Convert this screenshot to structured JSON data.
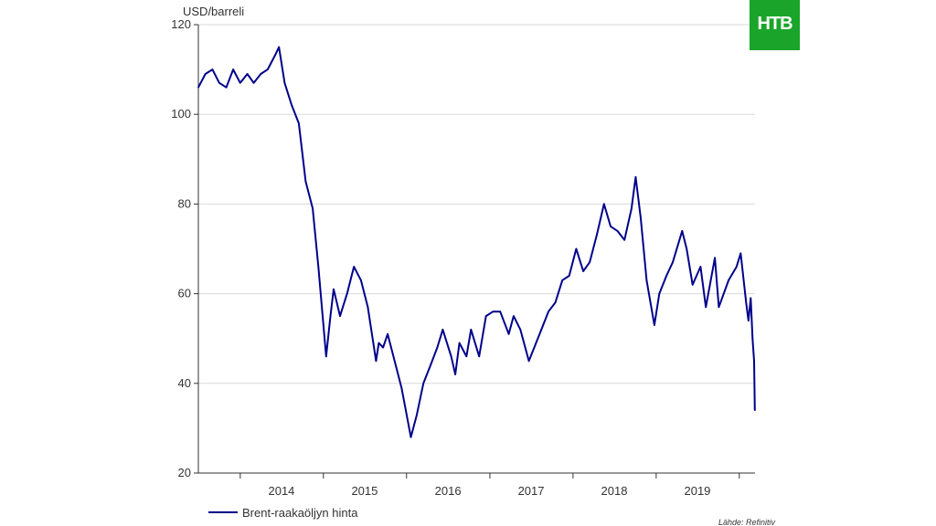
{
  "logo": {
    "text": "НТВ",
    "color": "#1aa52a"
  },
  "source": "Lähde: Refinitiv",
  "chart_data": {
    "type": "line",
    "title": "",
    "ylabel": "USD/barreli",
    "xlabel": "",
    "ylim": [
      20,
      120
    ],
    "xlim": [
      "2013-07-01",
      "2020-03-10"
    ],
    "yticks": [
      20,
      40,
      60,
      80,
      100,
      120
    ],
    "xtick_labels": [
      "2014",
      "2015",
      "2016",
      "2017",
      "2018",
      "2019"
    ],
    "grid": true,
    "legend": "bottom-left",
    "series": [
      {
        "name": "Brent-raakaöljyn hinta",
        "color": "#00008b",
        "points": [
          [
            "2013-07-01",
            106
          ],
          [
            "2013-08-01",
            109
          ],
          [
            "2013-09-01",
            110
          ],
          [
            "2013-10-01",
            107
          ],
          [
            "2013-11-01",
            106
          ],
          [
            "2013-12-01",
            110
          ],
          [
            "2014-01-01",
            107
          ],
          [
            "2014-02-01",
            109
          ],
          [
            "2014-03-01",
            107
          ],
          [
            "2014-04-01",
            109
          ],
          [
            "2014-05-01",
            110
          ],
          [
            "2014-06-01",
            113
          ],
          [
            "2014-06-20",
            115
          ],
          [
            "2014-07-15",
            107
          ],
          [
            "2014-08-15",
            102
          ],
          [
            "2014-09-15",
            98
          ],
          [
            "2014-10-15",
            85
          ],
          [
            "2014-11-15",
            79
          ],
          [
            "2014-12-10",
            66
          ],
          [
            "2015-01-13",
            46
          ],
          [
            "2015-02-01",
            55
          ],
          [
            "2015-02-15",
            61
          ],
          [
            "2015-03-15",
            55
          ],
          [
            "2015-04-15",
            60
          ],
          [
            "2015-05-15",
            66
          ],
          [
            "2015-06-15",
            63
          ],
          [
            "2015-07-15",
            57
          ],
          [
            "2015-08-20",
            45
          ],
          [
            "2015-09-01",
            49
          ],
          [
            "2015-09-20",
            48
          ],
          [
            "2015-10-10",
            51
          ],
          [
            "2015-11-15",
            44
          ],
          [
            "2015-12-10",
            39
          ],
          [
            "2016-01-20",
            28
          ],
          [
            "2016-02-15",
            33
          ],
          [
            "2016-03-15",
            40
          ],
          [
            "2016-04-15",
            44
          ],
          [
            "2016-05-15",
            48
          ],
          [
            "2016-06-08",
            52
          ],
          [
            "2016-07-15",
            46
          ],
          [
            "2016-08-02",
            42
          ],
          [
            "2016-08-20",
            49
          ],
          [
            "2016-09-20",
            46
          ],
          [
            "2016-10-10",
            52
          ],
          [
            "2016-11-15",
            46
          ],
          [
            "2016-12-15",
            55
          ],
          [
            "2017-01-15",
            56
          ],
          [
            "2017-02-15",
            56
          ],
          [
            "2017-03-25",
            51
          ],
          [
            "2017-04-15",
            55
          ],
          [
            "2017-05-15",
            52
          ],
          [
            "2017-06-21",
            45
          ],
          [
            "2017-07-15",
            48
          ],
          [
            "2017-08-15",
            52
          ],
          [
            "2017-09-15",
            56
          ],
          [
            "2017-10-15",
            58
          ],
          [
            "2017-11-15",
            63
          ],
          [
            "2017-12-15",
            64
          ],
          [
            "2018-01-15",
            70
          ],
          [
            "2018-02-15",
            65
          ],
          [
            "2018-03-15",
            67
          ],
          [
            "2018-04-15",
            73
          ],
          [
            "2018-05-17",
            80
          ],
          [
            "2018-06-15",
            75
          ],
          [
            "2018-07-15",
            74
          ],
          [
            "2018-08-15",
            72
          ],
          [
            "2018-09-15",
            79
          ],
          [
            "2018-10-03",
            86
          ],
          [
            "2018-10-25",
            77
          ],
          [
            "2018-11-20",
            63
          ],
          [
            "2018-12-24",
            53
          ],
          [
            "2019-01-15",
            60
          ],
          [
            "2019-02-15",
            64
          ],
          [
            "2019-03-15",
            67
          ],
          [
            "2019-04-25",
            74
          ],
          [
            "2019-05-15",
            70
          ],
          [
            "2019-06-10",
            62
          ],
          [
            "2019-07-15",
            66
          ],
          [
            "2019-08-07",
            57
          ],
          [
            "2019-09-16",
            68
          ],
          [
            "2019-10-03",
            57
          ],
          [
            "2019-11-15",
            63
          ],
          [
            "2019-12-20",
            66
          ],
          [
            "2020-01-07",
            69
          ],
          [
            "2020-01-31",
            58
          ],
          [
            "2020-02-10",
            54
          ],
          [
            "2020-02-20",
            59
          ],
          [
            "2020-02-28",
            50
          ],
          [
            "2020-03-06",
            45
          ],
          [
            "2020-03-09",
            34
          ]
        ]
      }
    ]
  }
}
